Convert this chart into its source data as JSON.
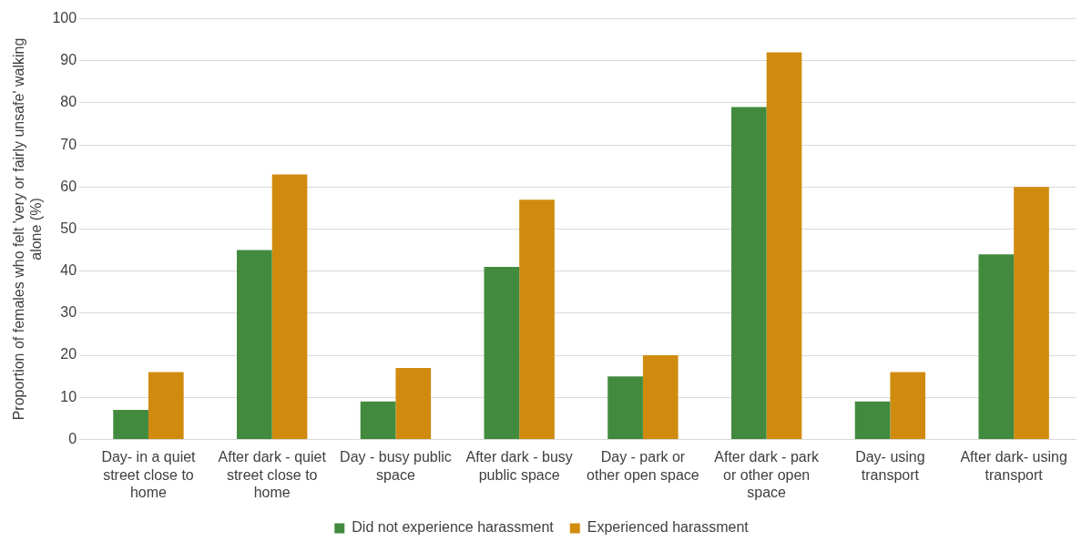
{
  "chart_data": {
    "type": "bar",
    "ylabel": "Proportion of females who felt 'very or fairly unsafe' walking alone (%)",
    "categories": [
      "Day- in a quiet street close to home",
      "After dark - quiet street close to home",
      "Day - busy public space",
      "After dark - busy public space",
      "Day - park or other open space",
      "After dark - park or other open space",
      "Day- using transport",
      "After dark- using transport"
    ],
    "series": [
      {
        "name": "Did not experience harassment",
        "color": "#428b3e",
        "values": [
          7,
          45,
          9,
          41,
          15,
          79,
          9,
          44
        ]
      },
      {
        "name": "Experienced harassment",
        "color": "#d08b0f",
        "values": [
          16,
          63,
          17,
          57,
          20,
          92,
          16,
          60
        ]
      }
    ],
    "ylim": [
      0,
      100
    ],
    "yticks": [
      0,
      10,
      20,
      30,
      40,
      50,
      60,
      70,
      80,
      90,
      100
    ],
    "grid": "y",
    "legend": "bottom"
  }
}
